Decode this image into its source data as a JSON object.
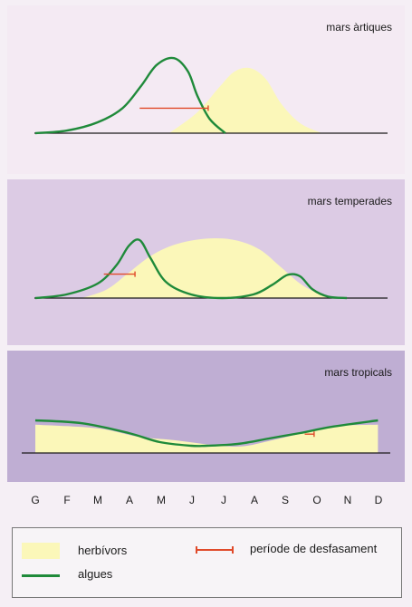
{
  "colors": {
    "herbivores": "#fbf7b9",
    "algae": "#1f8a3a",
    "lag": "#e04a2a",
    "baseline": "#1a1a1a"
  },
  "chart_data": [
    {
      "type": "area",
      "title": "mars àrtiques",
      "x": [
        "G",
        "F",
        "M",
        "A",
        "M",
        "J",
        "J",
        "A",
        "S",
        "O",
        "N",
        "D"
      ],
      "ylim": [
        0,
        1
      ],
      "series": [
        {
          "name": "herbívors",
          "kind": "area",
          "points": [
            [
              4.3,
              0
            ],
            [
              5.2,
              0.25
            ],
            [
              5.9,
              0.55
            ],
            [
              6.4,
              0.74
            ],
            [
              6.9,
              0.78
            ],
            [
              7.4,
              0.65
            ],
            [
              7.9,
              0.35
            ],
            [
              8.5,
              0.12
            ],
            [
              9.2,
              0
            ]
          ]
        },
        {
          "name": "algues",
          "kind": "line",
          "points": [
            [
              0,
              0
            ],
            [
              1,
              0.03
            ],
            [
              2,
              0.13
            ],
            [
              2.8,
              0.3
            ],
            [
              3.4,
              0.57
            ],
            [
              3.9,
              0.82
            ],
            [
              4.45,
              0.9
            ],
            [
              4.9,
              0.74
            ],
            [
              5.2,
              0.45
            ],
            [
              5.6,
              0.17
            ],
            [
              6.1,
              0
            ]
          ]
        }
      ],
      "lag": [
        3.35,
        5.55,
        0.3
      ]
    },
    {
      "type": "area",
      "title": "mars temperades",
      "x": [
        "G",
        "F",
        "M",
        "A",
        "M",
        "J",
        "J",
        "A",
        "S",
        "O",
        "N",
        "D"
      ],
      "ylim": [
        0,
        1
      ],
      "series": [
        {
          "name": "herbívors",
          "kind": "area",
          "points": [
            [
              1.5,
              0
            ],
            [
              2.3,
              0.12
            ],
            [
              3,
              0.35
            ],
            [
              3.7,
              0.58
            ],
            [
              4.5,
              0.74
            ],
            [
              5.5,
              0.82
            ],
            [
              6.4,
              0.8
            ],
            [
              7.2,
              0.67
            ],
            [
              7.9,
              0.42
            ],
            [
              8.6,
              0.17
            ],
            [
              9.4,
              0
            ]
          ]
        },
        {
          "name": "algues",
          "kind": "line",
          "points": [
            [
              0,
              0
            ],
            [
              1,
              0.05
            ],
            [
              2,
              0.2
            ],
            [
              2.6,
              0.45
            ],
            [
              3,
              0.72
            ],
            [
              3.35,
              0.8
            ],
            [
              3.7,
              0.55
            ],
            [
              4.2,
              0.22
            ],
            [
              5,
              0.05
            ],
            [
              6,
              0
            ],
            [
              7,
              0.05
            ],
            [
              7.6,
              0.18
            ],
            [
              8.1,
              0.32
            ],
            [
              8.5,
              0.3
            ],
            [
              8.9,
              0.12
            ],
            [
              9.4,
              0.02
            ],
            [
              10,
              0
            ]
          ]
        }
      ],
      "lag": [
        2.2,
        3.2,
        0.33
      ]
    },
    {
      "type": "area",
      "title": "mars tropicals",
      "x": [
        "G",
        "F",
        "M",
        "A",
        "M",
        "J",
        "J",
        "A",
        "S",
        "O",
        "N",
        "D"
      ],
      "ylim": [
        0,
        1
      ],
      "series": [
        {
          "name": "herbívors",
          "kind": "area",
          "points": [
            [
              0,
              0.78
            ],
            [
              2,
              0.68
            ],
            [
              3.3,
              0.45
            ],
            [
              4.5,
              0.35
            ],
            [
              5.6,
              0.23
            ],
            [
              6.6,
              0.18
            ],
            [
              7.6,
              0.35
            ],
            [
              8.6,
              0.55
            ],
            [
              9.6,
              0.74
            ],
            [
              11,
              0.78
            ]
          ]
        },
        {
          "name": "algues",
          "kind": "line",
          "points": [
            [
              0,
              0.9
            ],
            [
              1.5,
              0.82
            ],
            [
              3,
              0.55
            ],
            [
              4,
              0.3
            ],
            [
              5,
              0.2
            ],
            [
              5.5,
              0.2
            ],
            [
              6.5,
              0.25
            ],
            [
              7.5,
              0.4
            ],
            [
              8.5,
              0.55
            ],
            [
              9.5,
              0.72
            ],
            [
              11,
              0.9
            ]
          ]
        }
      ],
      "lag": [
        8.65,
        8.95,
        0.52
      ]
    }
  ],
  "months": [
    "G",
    "F",
    "M",
    "A",
    "M",
    "J",
    "J",
    "A",
    "S",
    "O",
    "N",
    "D"
  ],
  "legend": {
    "herbivores": "herbívors",
    "algae": "algues",
    "lag": "període de desfasament"
  }
}
